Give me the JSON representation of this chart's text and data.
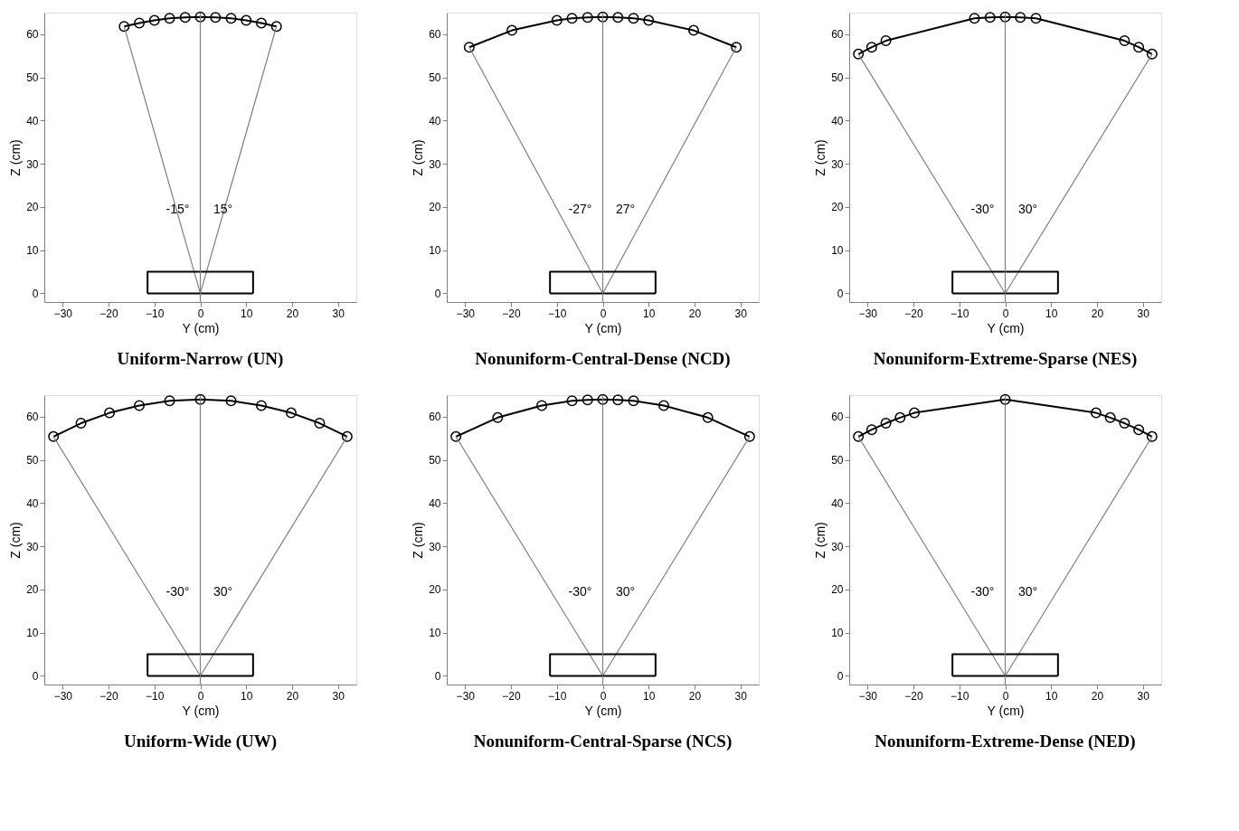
{
  "chart_data": [
    {
      "type": "line",
      "title": "Uniform-Narrow (UN)",
      "xlabel": "Y (cm)",
      "ylabel": "Z (cm)",
      "xlim": [
        -34,
        34
      ],
      "ylim": [
        -2,
        65
      ],
      "xticks": [
        -30,
        -20,
        -10,
        0,
        10,
        20,
        30
      ],
      "yticks": [
        0,
        10,
        20,
        30,
        40,
        50,
        60
      ],
      "grid": false,
      "series": [
        {
          "type": "line",
          "marker": "circle",
          "color": "#000000",
          "x": [
            -16.6,
            -13.3,
            -10.0,
            -6.7,
            -3.3,
            0,
            3.3,
            6.7,
            10.0,
            13.3,
            16.6
          ],
          "values": [
            61.8,
            62.6,
            63.2,
            63.7,
            63.9,
            64.0,
            63.9,
            63.7,
            63.2,
            62.6,
            61.8
          ]
        },
        {
          "type": "line",
          "marker": "none",
          "color": "#808080",
          "x": [
            -16.6,
            0,
            16.6
          ],
          "values": [
            61.8,
            0,
            61.8
          ]
        },
        {
          "type": "line",
          "marker": "none",
          "color": "#000000",
          "x": [
            -11.5,
            -11.5,
            11.5,
            11.5
          ],
          "values": [
            0,
            5,
            5,
            0
          ]
        },
        {
          "type": "line",
          "marker": "none",
          "color": "#000000",
          "x": [
            -11.5,
            11.5
          ],
          "values": [
            0,
            0
          ]
        }
      ],
      "ref_lines": [
        {
          "axis": "x",
          "value": 0,
          "color": "#808080"
        }
      ],
      "annotations": [
        "-15°",
        "15°"
      ]
    },
    {
      "type": "line",
      "title": "Nonuniform-Central-Dense (NCD)",
      "xlabel": "Y (cm)",
      "ylabel": "Z (cm)",
      "xlim": [
        -34,
        34
      ],
      "ylim": [
        -2,
        65
      ],
      "xticks": [
        -30,
        -20,
        -10,
        0,
        10,
        20,
        30
      ],
      "yticks": [
        0,
        10,
        20,
        30,
        40,
        50,
        60
      ],
      "grid": false,
      "series": [
        {
          "type": "line",
          "marker": "circle",
          "color": "#000000",
          "x": [
            -29.1,
            -19.8,
            -10.0,
            -6.7,
            -3.3,
            0,
            3.3,
            6.7,
            10.0,
            19.8,
            29.1
          ],
          "values": [
            57.0,
            60.9,
            63.2,
            63.7,
            63.9,
            64.0,
            63.9,
            63.7,
            63.2,
            60.9,
            57.0
          ]
        },
        {
          "type": "line",
          "marker": "none",
          "color": "#808080",
          "x": [
            -29.1,
            0,
            29.1
          ],
          "values": [
            57.0,
            0,
            57.0
          ]
        },
        {
          "type": "line",
          "marker": "none",
          "color": "#000000",
          "x": [
            -11.5,
            -11.5,
            11.5,
            11.5
          ],
          "values": [
            0,
            5,
            5,
            0
          ]
        },
        {
          "type": "line",
          "marker": "none",
          "color": "#000000",
          "x": [
            -11.5,
            11.5
          ],
          "values": [
            0,
            0
          ]
        }
      ],
      "ref_lines": [
        {
          "axis": "x",
          "value": 0,
          "color": "#808080"
        }
      ],
      "annotations": [
        "-27°",
        "27°"
      ]
    },
    {
      "type": "line",
      "title": "Nonuniform-Extreme-Sparse (NES)",
      "xlabel": "Y (cm)",
      "ylabel": "Z (cm)",
      "xlim": [
        -34,
        34
      ],
      "ylim": [
        -2,
        65
      ],
      "xticks": [
        -30,
        -20,
        -10,
        0,
        10,
        20,
        30
      ],
      "yticks": [
        0,
        10,
        20,
        30,
        40,
        50,
        60
      ],
      "grid": false,
      "series": [
        {
          "type": "line",
          "marker": "circle",
          "color": "#000000",
          "x": [
            -32.0,
            -29.1,
            -26.0,
            -6.7,
            -3.3,
            0,
            3.3,
            6.7,
            26.0,
            29.1,
            32.0
          ],
          "values": [
            55.4,
            57.0,
            58.5,
            63.7,
            63.9,
            64.0,
            63.9,
            63.7,
            58.5,
            57.0,
            55.4
          ]
        },
        {
          "type": "line",
          "marker": "none",
          "color": "#808080",
          "x": [
            -32.0,
            0,
            32.0
          ],
          "values": [
            55.4,
            0,
            55.4
          ]
        },
        {
          "type": "line",
          "marker": "none",
          "color": "#000000",
          "x": [
            -11.5,
            -11.5,
            11.5,
            11.5
          ],
          "values": [
            0,
            5,
            5,
            0
          ]
        },
        {
          "type": "line",
          "marker": "none",
          "color": "#000000",
          "x": [
            -11.5,
            11.5
          ],
          "values": [
            0,
            0
          ]
        }
      ],
      "ref_lines": [
        {
          "axis": "x",
          "value": 0,
          "color": "#808080"
        }
      ],
      "annotations": [
        "-30°",
        "30°"
      ]
    },
    {
      "type": "line",
      "title": "Uniform-Wide (UW)",
      "xlabel": "Y (cm)",
      "ylabel": "Z (cm)",
      "xlim": [
        -34,
        34
      ],
      "ylim": [
        -2,
        65
      ],
      "xticks": [
        -30,
        -20,
        -10,
        0,
        10,
        20,
        30
      ],
      "yticks": [
        0,
        10,
        20,
        30,
        40,
        50,
        60
      ],
      "grid": false,
      "series": [
        {
          "type": "line",
          "marker": "circle",
          "color": "#000000",
          "x": [
            -32.0,
            -26.0,
            -19.8,
            -13.3,
            -6.7,
            0,
            6.7,
            13.3,
            19.8,
            26.0,
            32.0
          ],
          "values": [
            55.4,
            58.5,
            60.9,
            62.6,
            63.7,
            64.0,
            63.7,
            62.6,
            60.9,
            58.5,
            55.4
          ]
        },
        {
          "type": "line",
          "marker": "none",
          "color": "#808080",
          "x": [
            -32.0,
            0,
            32.0
          ],
          "values": [
            55.4,
            0,
            55.4
          ]
        },
        {
          "type": "line",
          "marker": "none",
          "color": "#000000",
          "x": [
            -11.5,
            -11.5,
            11.5,
            11.5
          ],
          "values": [
            0,
            5,
            5,
            0
          ]
        },
        {
          "type": "line",
          "marker": "none",
          "color": "#000000",
          "x": [
            -11.5,
            11.5
          ],
          "values": [
            0,
            0
          ]
        }
      ],
      "ref_lines": [
        {
          "axis": "x",
          "value": 0,
          "color": "#808080"
        }
      ],
      "annotations": [
        "-30°",
        "30°"
      ]
    },
    {
      "type": "line",
      "title": "Nonuniform-Central-Sparse (NCS)",
      "xlabel": "Y (cm)",
      "ylabel": "Z (cm)",
      "xlim": [
        -34,
        34
      ],
      "ylim": [
        -2,
        65
      ],
      "xticks": [
        -30,
        -20,
        -10,
        0,
        10,
        20,
        30
      ],
      "yticks": [
        0,
        10,
        20,
        30,
        40,
        50,
        60
      ],
      "grid": false,
      "series": [
        {
          "type": "line",
          "marker": "circle",
          "color": "#000000",
          "x": [
            -32.0,
            -22.9,
            -13.3,
            -6.7,
            -3.3,
            0,
            3.3,
            6.7,
            13.3,
            22.9,
            32.0
          ],
          "values": [
            55.4,
            59.8,
            62.6,
            63.7,
            63.9,
            64.0,
            63.9,
            63.7,
            62.6,
            59.8,
            55.4
          ]
        },
        {
          "type": "line",
          "marker": "none",
          "color": "#808080",
          "x": [
            -32.0,
            0,
            32.0
          ],
          "values": [
            55.4,
            0,
            55.4
          ]
        },
        {
          "type": "line",
          "marker": "none",
          "color": "#000000",
          "x": [
            -11.5,
            -11.5,
            11.5,
            11.5
          ],
          "values": [
            0,
            5,
            5,
            0
          ]
        },
        {
          "type": "line",
          "marker": "none",
          "color": "#000000",
          "x": [
            -11.5,
            11.5
          ],
          "values": [
            0,
            0
          ]
        }
      ],
      "ref_lines": [
        {
          "axis": "x",
          "value": 0,
          "color": "#808080"
        }
      ],
      "annotations": [
        "-30°",
        "30°"
      ]
    },
    {
      "type": "line",
      "title": "Nonuniform-Extreme-Dense (NED)",
      "xlabel": "Y (cm)",
      "ylabel": "Z (cm)",
      "xlim": [
        -34,
        34
      ],
      "ylim": [
        -2,
        65
      ],
      "xticks": [
        -30,
        -20,
        -10,
        0,
        10,
        20,
        30
      ],
      "yticks": [
        0,
        10,
        20,
        30,
        40,
        50,
        60
      ],
      "grid": false,
      "series": [
        {
          "type": "line",
          "marker": "circle",
          "color": "#000000",
          "x": [
            -32.0,
            -29.1,
            -26.0,
            -22.9,
            -19.8,
            0,
            19.8,
            22.9,
            26.0,
            29.1,
            32.0
          ],
          "values": [
            55.4,
            57.0,
            58.5,
            59.8,
            60.9,
            64.0,
            60.9,
            59.8,
            58.5,
            57.0,
            55.4
          ]
        },
        {
          "type": "line",
          "marker": "none",
          "color": "#808080",
          "x": [
            -32.0,
            0,
            32.0
          ],
          "values": [
            55.4,
            0,
            55.4
          ]
        },
        {
          "type": "line",
          "marker": "none",
          "color": "#000000",
          "x": [
            -11.5,
            -11.5,
            11.5,
            11.5
          ],
          "values": [
            0,
            5,
            5,
            0
          ]
        },
        {
          "type": "line",
          "marker": "none",
          "color": "#000000",
          "x": [
            -11.5,
            11.5
          ],
          "values": [
            0,
            0
          ]
        }
      ],
      "ref_lines": [
        {
          "axis": "x",
          "value": 0,
          "color": "#808080"
        }
      ],
      "annotations": [
        "-30°",
        "30°"
      ]
    }
  ]
}
